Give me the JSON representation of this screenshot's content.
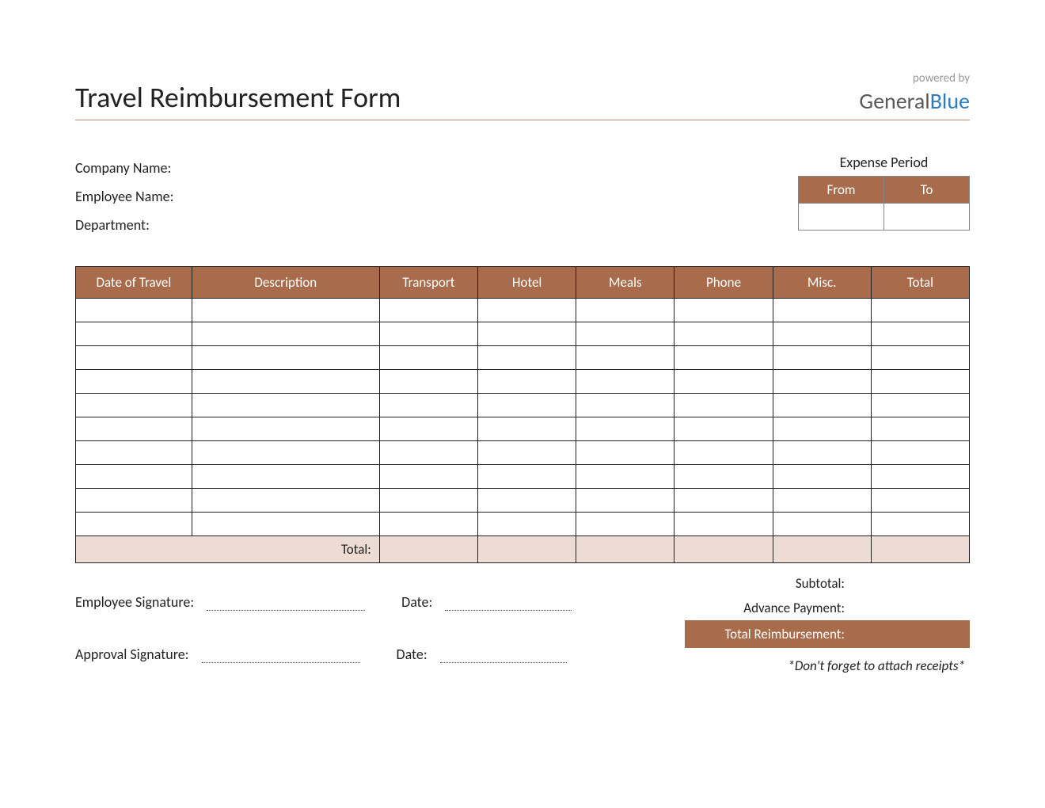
{
  "header": {
    "title": "Travel Reimbursement Form",
    "powered_by": "powered by",
    "logo_general": "General",
    "logo_blue": "Blue"
  },
  "info": {
    "company_label": "Company Name:",
    "employee_label": "Employee Name:",
    "department_label": "Department:"
  },
  "expense_period": {
    "title": "Expense Period",
    "from": "From",
    "to": "To"
  },
  "table": {
    "columns": [
      "Date of Travel",
      "Description",
      "Transport",
      "Hotel",
      "Meals",
      "Phone",
      "Misc.",
      "Total"
    ],
    "column_widths": [
      "13%",
      "21%",
      "11%",
      "11%",
      "11%",
      "11%",
      "11%",
      "11%"
    ],
    "row_count": 10,
    "total_label": "Total:",
    "header_bg": "#a86b4c",
    "header_fg": "#ffffff",
    "total_row_bg": "#ecdcd3",
    "border_color": "#222222"
  },
  "summary": {
    "subtotal_label": "Subtotal:",
    "advance_label": "Advance Payment:",
    "total_reimb_label": "Total Reimbursement:",
    "total_reimb_bg": "#a86b4c",
    "total_reimb_fg": "#ffffff"
  },
  "signatures": {
    "employee_label": "Employee Signature:",
    "approval_label": "Approval Signature:",
    "date_label": "Date:"
  },
  "note": "*Don't forget to attach receipts*",
  "colors": {
    "accent": "#a86b4c",
    "rule": "#b88a6f",
    "logo_gray": "#5a5a5a",
    "logo_blue": "#2e7cc0"
  }
}
